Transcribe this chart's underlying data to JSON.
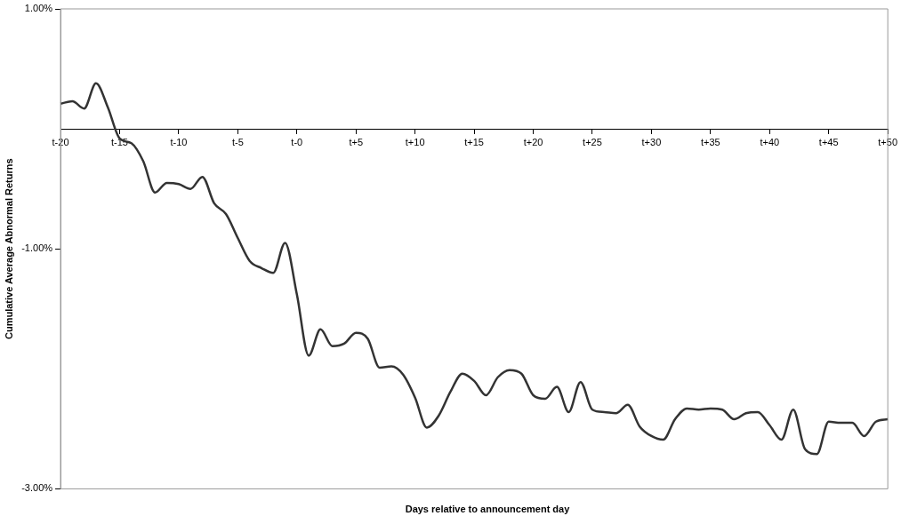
{
  "chart_data": {
    "type": "line",
    "xlabel": "Days relative to announcement day",
    "ylabel": "Cumulative Average Abnormal Returns",
    "categories": [
      "t-20",
      null,
      null,
      null,
      null,
      "t-15",
      null,
      null,
      null,
      null,
      "t-10",
      null,
      null,
      null,
      null,
      "t-5",
      null,
      null,
      null,
      null,
      "t-0",
      null,
      null,
      null,
      null,
      "t+5",
      null,
      null,
      null,
      null,
      "t+10",
      null,
      null,
      null,
      null,
      "t+15",
      null,
      null,
      null,
      null,
      "t+20",
      null,
      null,
      null,
      null,
      "t+25",
      null,
      null,
      null,
      null,
      "t+30",
      null,
      null,
      null,
      null,
      "t+35",
      null,
      null,
      null,
      null,
      "t+40",
      null,
      null,
      null,
      null,
      "t+45",
      null,
      null,
      null,
      null,
      "t+50"
    ],
    "series": [
      {
        "color": "#333333",
        "values": [
          0.21,
          0.23,
          0.17,
          0.38,
          0.18,
          -0.08,
          -0.12,
          -0.27,
          -0.53,
          -0.45,
          -0.46,
          -0.5,
          -0.4,
          -0.62,
          -0.71,
          -0.91,
          -1.1,
          -1.16,
          -1.2,
          -0.95,
          -1.38,
          -1.89,
          -1.67,
          -1.81,
          -1.79,
          -1.7,
          -1.75,
          -1.99,
          -1.98,
          -2.05,
          -2.24,
          -2.49,
          -2.39,
          -2.19,
          -2.04,
          -2.1,
          -2.22,
          -2.07,
          -2.01,
          -2.04,
          -2.22,
          -2.25,
          -2.15,
          -2.36,
          -2.11,
          -2.34,
          -2.36,
          -2.37,
          -2.3,
          -2.48,
          -2.56,
          -2.59,
          -2.42,
          -2.33,
          -2.34,
          -2.33,
          -2.34,
          -2.42,
          -2.37,
          -2.36,
          -2.47,
          -2.59,
          -2.34,
          -2.67,
          -2.71,
          -2.44,
          -2.45,
          -2.45,
          -2.56,
          -2.44,
          -2.42
        ]
      }
    ],
    "ylim": [
      -3,
      1
    ],
    "yticks": [
      {
        "value": -3,
        "label": "-3.00%"
      },
      {
        "value": -1,
        "label": "-1.00%"
      },
      {
        "value": 1,
        "label": "1.00%"
      }
    ],
    "grid": false,
    "legend": false,
    "marker": "none",
    "line_style": "solid"
  }
}
